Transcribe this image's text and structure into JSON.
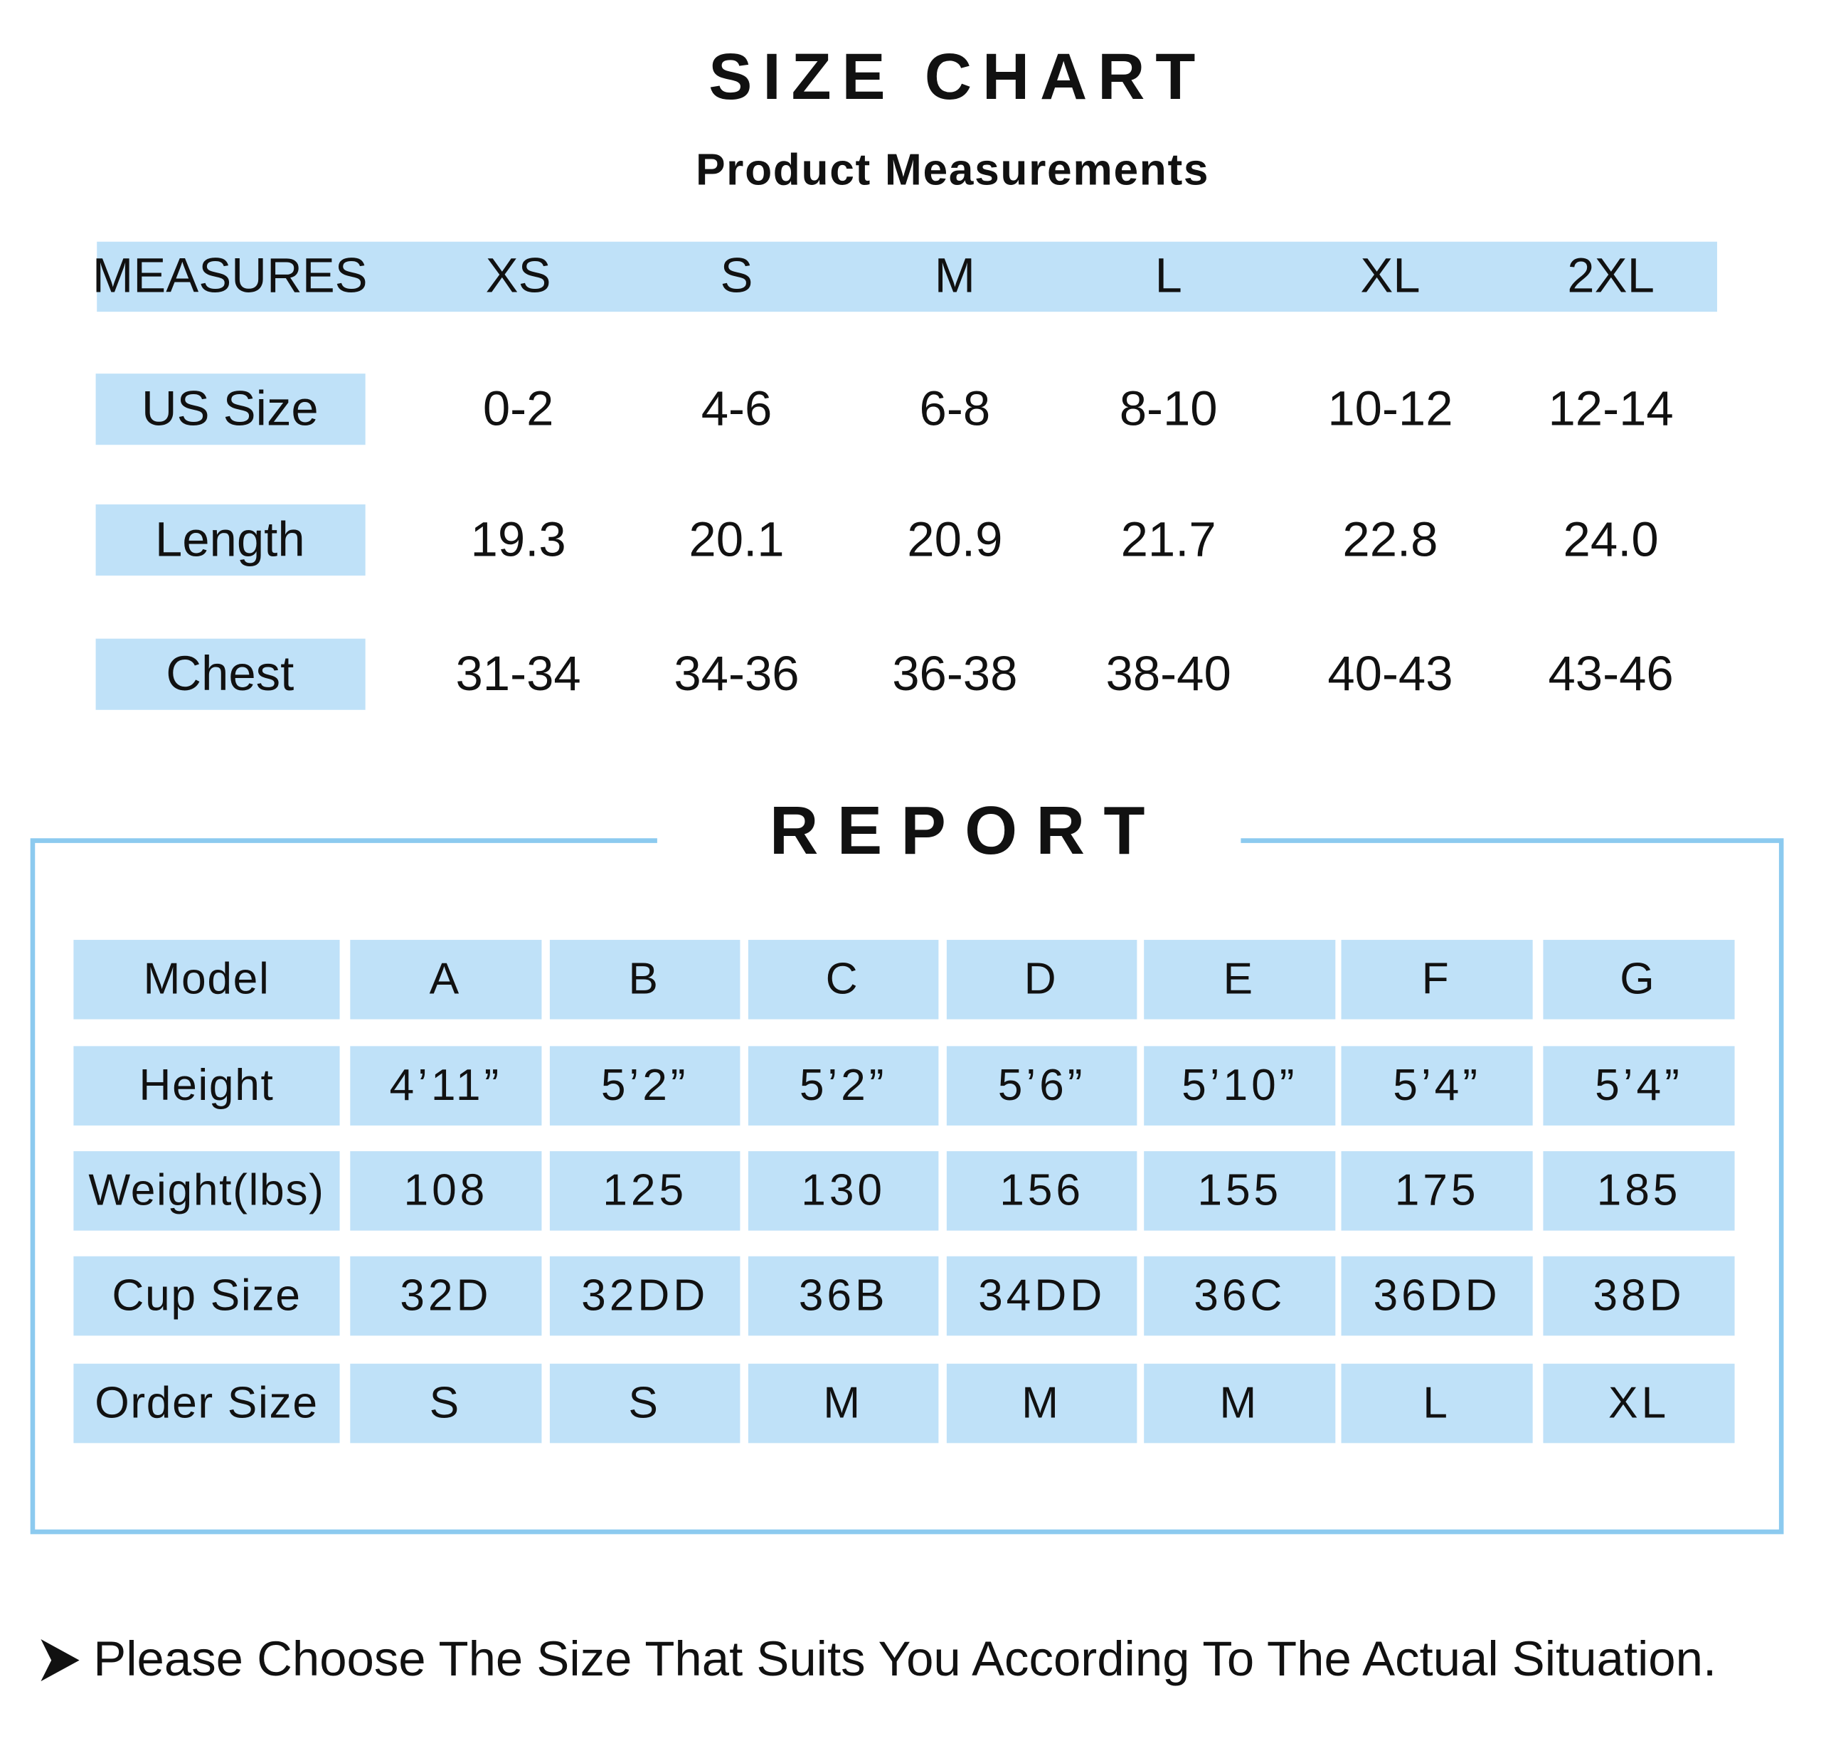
{
  "header": {
    "title": "SIZE CHART",
    "subtitle": "Product Measurements"
  },
  "size_table": {
    "header": [
      "MEASURES",
      "XS",
      "S",
      "M",
      "L",
      "XL",
      "2XL"
    ],
    "rows": [
      [
        "US Size",
        "0-2",
        "4-6",
        "6-8",
        "8-10",
        "10-12",
        "12-14"
      ],
      [
        "Length",
        "19.3",
        "20.1",
        "20.9",
        "21.7",
        "22.8",
        "24.0"
      ],
      [
        "Chest",
        "31-34",
        "34-36",
        "36-38",
        "38-40",
        "40-43",
        "43-46"
      ]
    ]
  },
  "report": {
    "title": "REPORT",
    "header": [
      "Model",
      "A",
      "B",
      "C",
      "D",
      "E",
      "F",
      "G"
    ],
    "rows": [
      [
        "Height",
        "4’11”",
        "5’2”",
        "5’2”",
        "5’6”",
        "5’10”",
        "5’4”",
        "5’4”"
      ],
      [
        "Weight(lbs)",
        "108",
        "125",
        "130",
        "156",
        "155",
        "175",
        "185"
      ],
      [
        "Cup Size",
        "32D",
        "32DD",
        "36B",
        "34DD",
        "36C",
        "36DD",
        "38D"
      ],
      [
        "Order Size",
        "S",
        "S",
        "M",
        "M",
        "M",
        "L",
        "XL"
      ]
    ]
  },
  "note": "Please Choose The Size That Suits You According To The Actual Situation."
}
